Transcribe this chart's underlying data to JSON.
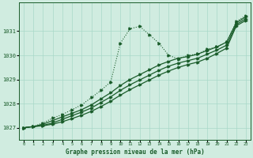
{
  "title": "Graphe pression niveau de la mer (hPa)",
  "background_color": "#d0ece0",
  "grid_color": "#a8d8c8",
  "line_color": "#1a5c2a",
  "xlim": [
    -0.5,
    23.5
  ],
  "ylim": [
    1026.5,
    1032.2
  ],
  "yticks": [
    1027,
    1028,
    1029,
    1030,
    1031
  ],
  "series1_x": [
    0,
    1,
    2,
    3,
    4,
    5,
    6,
    7,
    8,
    9,
    10,
    11,
    12,
    13,
    14,
    15,
    16,
    17,
    18,
    19,
    20,
    21,
    22,
    23
  ],
  "series1_y": [
    1027.0,
    1027.05,
    1027.2,
    1027.4,
    1027.55,
    1027.75,
    1027.95,
    1028.25,
    1028.55,
    1028.9,
    1030.5,
    1031.1,
    1031.2,
    1030.85,
    1030.5,
    1030.0,
    1029.85,
    1030.0,
    1030.05,
    1030.25,
    1030.35,
    1030.55,
    1031.4,
    1031.65
  ],
  "series2_x": [
    0,
    1,
    2,
    3,
    4,
    5,
    6,
    7,
    8,
    9,
    10,
    11,
    12,
    13,
    14,
    15,
    16,
    17,
    18,
    19,
    20,
    21,
    22,
    23
  ],
  "series2_y": [
    1027.0,
    1027.05,
    1027.15,
    1027.3,
    1027.45,
    1027.6,
    1027.75,
    1027.95,
    1028.2,
    1028.45,
    1028.75,
    1029.0,
    1029.2,
    1029.4,
    1029.6,
    1029.75,
    1029.88,
    1029.95,
    1030.05,
    1030.2,
    1030.35,
    1030.55,
    1031.35,
    1031.6
  ],
  "series3_x": [
    0,
    1,
    2,
    3,
    4,
    5,
    6,
    7,
    8,
    9,
    10,
    11,
    12,
    13,
    14,
    15,
    16,
    17,
    18,
    19,
    20,
    21,
    22,
    23
  ],
  "series3_y": [
    1027.0,
    1027.05,
    1027.1,
    1027.2,
    1027.35,
    1027.5,
    1027.65,
    1027.82,
    1028.05,
    1028.28,
    1028.55,
    1028.78,
    1028.98,
    1029.18,
    1029.38,
    1029.55,
    1029.68,
    1029.78,
    1029.88,
    1030.05,
    1030.22,
    1030.42,
    1031.28,
    1031.52
  ],
  "series4_x": [
    0,
    1,
    2,
    3,
    4,
    5,
    6,
    7,
    8,
    9,
    10,
    11,
    12,
    13,
    14,
    15,
    16,
    17,
    18,
    19,
    20,
    21,
    22,
    23
  ],
  "series4_y": [
    1027.0,
    1027.05,
    1027.08,
    1027.15,
    1027.25,
    1027.38,
    1027.52,
    1027.68,
    1027.88,
    1028.1,
    1028.35,
    1028.58,
    1028.78,
    1028.98,
    1029.18,
    1029.35,
    1029.5,
    1029.62,
    1029.72,
    1029.88,
    1030.08,
    1030.3,
    1031.22,
    1031.45
  ]
}
